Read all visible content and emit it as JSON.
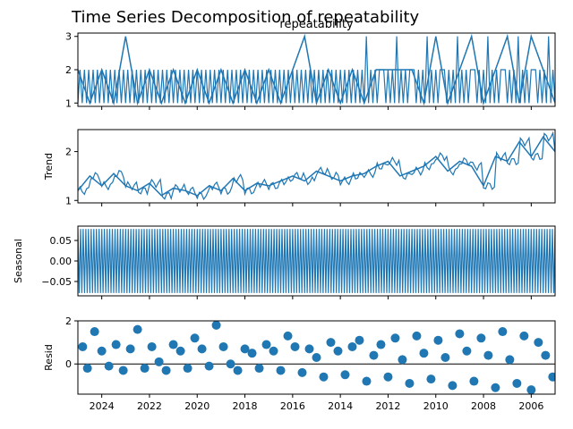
{
  "chart_data": {
    "type": "line",
    "title": "Time Series Decomposition of repeatability",
    "x_tick_labels": [
      "2024",
      "2022",
      "2020",
      "2018",
      "2016",
      "2014",
      "2012",
      "2010",
      "2008",
      "2006"
    ],
    "x_tick_values": [
      2024,
      2022,
      2020,
      2018,
      2016,
      2014,
      2012,
      2010,
      2008,
      2006
    ],
    "xlim": [
      2025.0,
      2005.0
    ],
    "series_color": "#1f77b4",
    "panels": [
      {
        "name": "observed",
        "subtitle": "repeatability",
        "ylabel": "",
        "ylim": [
          0.9,
          3.1
        ],
        "yticks": [
          1,
          2,
          3
        ],
        "ytick_labels": [
          "1",
          "2",
          "3"
        ],
        "kind": "line",
        "x": [
          2025.0,
          2024.5,
          2024.0,
          2023.5,
          2023.0,
          2022.5,
          2022.0,
          2021.5,
          2021.0,
          2020.5,
          2020.0,
          2019.5,
          2019.0,
          2018.5,
          2018.0,
          2017.5,
          2017.0,
          2016.5,
          2016.0,
          2015.5,
          2015.0,
          2014.5,
          2014.0,
          2013.5,
          2013.0,
          2012.5,
          2012.0,
          2011.5,
          2011.0,
          2010.5,
          2010.0,
          2009.5,
          2009.0,
          2008.5,
          2008.0,
          2007.5,
          2007.0,
          2006.5,
          2006.0,
          2005.5,
          2005.0
        ],
        "values": [
          2,
          1,
          2,
          1,
          3,
          1,
          2,
          1,
          2,
          1,
          2,
          1,
          2,
          1,
          2,
          1,
          2,
          1,
          2,
          3,
          1,
          2,
          1,
          2,
          1,
          2,
          2,
          2,
          2,
          1,
          3,
          1,
          2,
          3,
          1,
          2,
          3,
          1,
          3,
          2,
          1
        ]
      },
      {
        "name": "trend",
        "subtitle": "",
        "ylabel": "Trend",
        "ylim": [
          0.95,
          2.45
        ],
        "yticks": [
          1,
          2
        ],
        "ytick_labels": [
          "1",
          "2"
        ],
        "kind": "line",
        "x": [
          2025.0,
          2024.5,
          2024.0,
          2023.5,
          2023.0,
          2022.5,
          2022.0,
          2021.5,
          2021.0,
          2020.5,
          2020.0,
          2019.5,
          2019.0,
          2018.5,
          2018.0,
          2017.5,
          2017.0,
          2016.5,
          2016.0,
          2015.5,
          2015.0,
          2014.5,
          2014.0,
          2013.5,
          2013.0,
          2012.5,
          2012.0,
          2011.5,
          2011.0,
          2010.5,
          2010.0,
          2009.5,
          2009.0,
          2008.5,
          2008.0,
          2007.5,
          2007.0,
          2006.5,
          2006.0,
          2005.5,
          2005.0
        ],
        "values": [
          1.2,
          1.5,
          1.3,
          1.55,
          1.3,
          1.2,
          1.35,
          1.1,
          1.25,
          1.2,
          1.1,
          1.3,
          1.2,
          1.45,
          1.2,
          1.35,
          1.3,
          1.4,
          1.5,
          1.4,
          1.6,
          1.5,
          1.4,
          1.5,
          1.55,
          1.7,
          1.8,
          1.5,
          1.6,
          1.7,
          1.9,
          1.6,
          1.8,
          1.7,
          1.3,
          1.9,
          1.8,
          2.2,
          1.9,
          2.3,
          2.0
        ]
      },
      {
        "name": "seasonal",
        "subtitle": "",
        "ylabel": "Seasonal",
        "ylim": [
          -0.085,
          0.085
        ],
        "yticks": [
          0.05,
          0.0,
          -0.05
        ],
        "ytick_labels": [
          "0.05",
          "0.00",
          "−0.05"
        ],
        "kind": "oscillation",
        "amplitude_high": 0.078,
        "amplitude_low": -0.078,
        "x_start": 2025.0,
        "x_end": 2005.0,
        "x": [
          2020.6,
          2015.8,
          2013.6
        ],
        "values": [
          0.078,
          0.02,
          -0.07
        ]
      },
      {
        "name": "resid",
        "subtitle": "",
        "ylabel": "Resid",
        "ylim": [
          -1.4,
          2.0
        ],
        "yticks": [
          0,
          2
        ],
        "ytick_labels": [
          "0",
          "2"
        ],
        "kind": "scatter",
        "x": [
          2024.8,
          2024.6,
          2024.3,
          2024.0,
          2023.7,
          2023.4,
          2023.1,
          2022.8,
          2022.5,
          2022.2,
          2021.9,
          2021.6,
          2021.3,
          2021.0,
          2020.7,
          2020.4,
          2020.1,
          2019.8,
          2019.5,
          2019.2,
          2018.9,
          2018.6,
          2018.3,
          2018.0,
          2017.7,
          2017.4,
          2017.1,
          2016.8,
          2016.5,
          2016.2,
          2015.9,
          2015.6,
          2015.3,
          2015.0,
          2014.7,
          2014.4,
          2014.1,
          2013.8,
          2013.5,
          2013.2,
          2012.9,
          2012.6,
          2012.3,
          2012.0,
          2011.7,
          2011.4,
          2011.1,
          2010.8,
          2010.5,
          2010.2,
          2009.9,
          2009.6,
          2009.3,
          2009.0,
          2008.7,
          2008.4,
          2008.1,
          2007.8,
          2007.5,
          2007.2,
          2006.9,
          2006.6,
          2006.3,
          2006.0,
          2005.7,
          2005.4,
          2005.1
        ],
        "values": [
          0.8,
          -0.2,
          1.5,
          0.6,
          -0.1,
          0.9,
          -0.3,
          0.7,
          1.6,
          -0.2,
          0.8,
          0.1,
          -0.3,
          0.9,
          0.6,
          -0.2,
          1.2,
          0.7,
          -0.1,
          1.8,
          0.8,
          0.0,
          -0.3,
          0.7,
          0.5,
          -0.2,
          0.9,
          0.6,
          -0.3,
          1.3,
          0.8,
          -0.4,
          0.7,
          0.3,
          -0.6,
          1.0,
          0.6,
          -0.5,
          0.8,
          1.1,
          -0.8,
          0.4,
          0.9,
          -0.6,
          1.2,
          0.2,
          -0.9,
          1.3,
          0.5,
          -0.7,
          1.1,
          0.3,
          -1.0,
          1.4,
          0.6,
          -0.8,
          1.2,
          0.4,
          -1.1,
          1.5,
          0.2,
          -0.9,
          1.3,
          -1.2,
          1.0,
          0.4,
          -0.6
        ]
      }
    ]
  }
}
